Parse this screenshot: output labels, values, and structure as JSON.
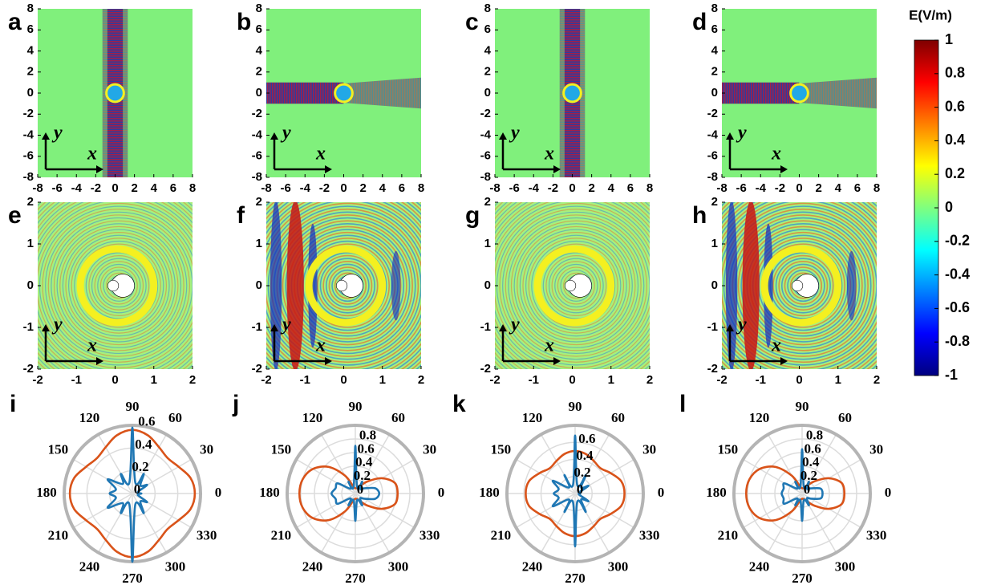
{
  "colorbar": {
    "title": "E(V/m)",
    "lim": [
      -1,
      1
    ],
    "ticks": [
      1,
      0.8,
      0.6,
      0.4,
      0.2,
      0,
      -0.2,
      -0.4,
      -0.6,
      -0.8,
      -1
    ]
  },
  "inset_axes": {
    "x": "x",
    "y": "y"
  },
  "field_maps": [
    {
      "label": "a",
      "xlim": [
        -8,
        8
      ],
      "ylim": [
        -8,
        8
      ],
      "xticks": [
        -8,
        -6,
        -4,
        -2,
        0,
        2,
        4,
        6,
        8
      ],
      "yticks": [
        -8,
        -6,
        -4,
        -2,
        0,
        2,
        4,
        6,
        8
      ]
    },
    {
      "label": "b",
      "xlim": [
        -8,
        8
      ],
      "ylim": [
        -8,
        8
      ],
      "xticks": [
        -8,
        -6,
        -4,
        -2,
        0,
        2,
        4,
        6,
        8
      ],
      "yticks": [
        -8,
        -6,
        -4,
        -2,
        0,
        2,
        4,
        6,
        8
      ]
    },
    {
      "label": "c",
      "xlim": [
        -8,
        8
      ],
      "ylim": [
        -8,
        8
      ],
      "xticks": [
        -8,
        -6,
        -4,
        -2,
        0,
        2,
        4,
        6,
        8
      ],
      "yticks": [
        -8,
        -6,
        -4,
        -2,
        0,
        2,
        4,
        6,
        8
      ]
    },
    {
      "label": "d",
      "xlim": [
        -8,
        8
      ],
      "ylim": [
        -8,
        8
      ],
      "xticks": [
        -8,
        -6,
        -4,
        -2,
        0,
        2,
        4,
        6,
        8
      ],
      "yticks": [
        -8,
        -6,
        -4,
        -2,
        0,
        2,
        4,
        6,
        8
      ]
    },
    {
      "label": "e",
      "xlim": [
        -2,
        2
      ],
      "ylim": [
        -2,
        2
      ],
      "xticks": [
        -2,
        -1,
        0,
        1,
        2
      ],
      "yticks": [
        -2,
        -1,
        0,
        1,
        2
      ]
    },
    {
      "label": "f",
      "xlim": [
        -2,
        2
      ],
      "ylim": [
        -2,
        2
      ],
      "xticks": [
        -2,
        -1,
        0,
        1,
        2
      ],
      "yticks": [
        -2,
        -1,
        0,
        1,
        2
      ]
    },
    {
      "label": "g",
      "xlim": [
        -2,
        2
      ],
      "ylim": [
        -2,
        2
      ],
      "xticks": [
        -2,
        -1,
        0,
        1,
        2
      ],
      "yticks": [
        -2,
        -1,
        0,
        1,
        2
      ]
    },
    {
      "label": "h",
      "xlim": [
        -2,
        2
      ],
      "ylim": [
        -2,
        2
      ],
      "xticks": [
        -2,
        -1,
        0,
        1,
        2
      ],
      "yticks": [
        -2,
        -1,
        0,
        1,
        2
      ]
    }
  ],
  "polar_plots": [
    {
      "label": "i",
      "angle_ticks": [
        0,
        30,
        60,
        90,
        120,
        150,
        180,
        210,
        240,
        270,
        300,
        330
      ],
      "rlim": [
        0,
        0.6
      ],
      "rticks": [
        0,
        0.2,
        0.4,
        0.6
      ],
      "angles": [
        0,
        15,
        30,
        45,
        60,
        75,
        90,
        105,
        120,
        135,
        150,
        165,
        180,
        195,
        210,
        225,
        240,
        255,
        270,
        285,
        300,
        315,
        330,
        345
      ],
      "series": [
        {
          "color": "#d95319",
          "values": [
            0.55,
            0.53,
            0.47,
            0.44,
            0.47,
            0.53,
            0.56,
            0.53,
            0.47,
            0.44,
            0.47,
            0.53,
            0.55,
            0.53,
            0.47,
            0.44,
            0.47,
            0.53,
            0.56,
            0.53,
            0.47,
            0.44,
            0.47,
            0.53
          ]
        },
        {
          "color": "#1f77b4",
          "values": [
            0.08,
            0.05,
            0.15,
            0.1,
            0.2,
            0.1,
            0.58,
            0.1,
            0.2,
            0.12,
            0.25,
            0.15,
            0.2,
            0.15,
            0.25,
            0.12,
            0.2,
            0.1,
            0.6,
            0.1,
            0.2,
            0.1,
            0.15,
            0.05
          ]
        }
      ]
    },
    {
      "label": "j",
      "angle_ticks": [
        0,
        30,
        60,
        90,
        120,
        150,
        180,
        210,
        240,
        270,
        300,
        330
      ],
      "rlim": [
        0,
        1
      ],
      "rticks": [
        0,
        0.2,
        0.4,
        0.6,
        0.8
      ],
      "angles": [
        0,
        15,
        30,
        45,
        60,
        75,
        90,
        105,
        120,
        135,
        150,
        165,
        180,
        195,
        210,
        225,
        240,
        255,
        270,
        285,
        300,
        315,
        330,
        345
      ],
      "series": [
        {
          "color": "#d95319",
          "values": [
            0.62,
            0.6,
            0.45,
            0.25,
            0.12,
            0.08,
            0.08,
            0.1,
            0.3,
            0.55,
            0.72,
            0.8,
            0.82,
            0.8,
            0.72,
            0.55,
            0.3,
            0.1,
            0.08,
            0.08,
            0.12,
            0.25,
            0.45,
            0.6
          ]
        },
        {
          "color": "#1f77b4",
          "values": [
            0.35,
            0.3,
            0.15,
            0.1,
            0.2,
            0.1,
            0.7,
            0.1,
            0.2,
            0.1,
            0.3,
            0.3,
            0.35,
            0.3,
            0.3,
            0.1,
            0.2,
            0.1,
            0.4,
            0.1,
            0.2,
            0.1,
            0.15,
            0.3
          ]
        }
      ]
    },
    {
      "label": "k",
      "angle_ticks": [
        0,
        30,
        60,
        90,
        120,
        150,
        180,
        210,
        240,
        270,
        300,
        330
      ],
      "rlim": [
        0,
        0.8
      ],
      "rticks": [
        0,
        0.2,
        0.4,
        0.6
      ],
      "angles": [
        0,
        15,
        30,
        45,
        60,
        75,
        90,
        105,
        120,
        135,
        150,
        165,
        180,
        195,
        210,
        225,
        240,
        255,
        270,
        285,
        300,
        315,
        330,
        345
      ],
      "series": [
        {
          "color": "#d95319",
          "values": [
            0.58,
            0.56,
            0.48,
            0.42,
            0.44,
            0.48,
            0.5,
            0.48,
            0.44,
            0.42,
            0.48,
            0.56,
            0.58,
            0.56,
            0.48,
            0.42,
            0.44,
            0.48,
            0.5,
            0.48,
            0.44,
            0.42,
            0.48,
            0.56
          ]
        },
        {
          "color": "#1f77b4",
          "values": [
            0.06,
            0.05,
            0.18,
            0.1,
            0.25,
            0.1,
            0.68,
            0.1,
            0.25,
            0.1,
            0.3,
            0.2,
            0.25,
            0.2,
            0.3,
            0.1,
            0.25,
            0.1,
            0.62,
            0.1,
            0.25,
            0.1,
            0.18,
            0.05
          ]
        }
      ]
    },
    {
      "label": "l",
      "angle_ticks": [
        0,
        30,
        60,
        90,
        120,
        150,
        180,
        210,
        240,
        270,
        300,
        330
      ],
      "rlim": [
        0,
        1
      ],
      "rticks": [
        0,
        0.2,
        0.4,
        0.6,
        0.8
      ],
      "angles": [
        0,
        15,
        30,
        45,
        60,
        75,
        90,
        105,
        120,
        135,
        150,
        165,
        180,
        195,
        210,
        225,
        240,
        255,
        270,
        285,
        300,
        315,
        330,
        345
      ],
      "series": [
        {
          "color": "#d95319",
          "values": [
            0.62,
            0.6,
            0.45,
            0.25,
            0.12,
            0.08,
            0.08,
            0.1,
            0.3,
            0.55,
            0.72,
            0.8,
            0.82,
            0.8,
            0.72,
            0.55,
            0.3,
            0.1,
            0.08,
            0.08,
            0.12,
            0.25,
            0.45,
            0.6
          ]
        },
        {
          "color": "#1f77b4",
          "values": [
            0.3,
            0.28,
            0.15,
            0.1,
            0.2,
            0.1,
            0.65,
            0.1,
            0.2,
            0.1,
            0.3,
            0.28,
            0.3,
            0.28,
            0.3,
            0.1,
            0.2,
            0.1,
            0.4,
            0.1,
            0.2,
            0.1,
            0.15,
            0.28
          ]
        }
      ]
    }
  ]
}
